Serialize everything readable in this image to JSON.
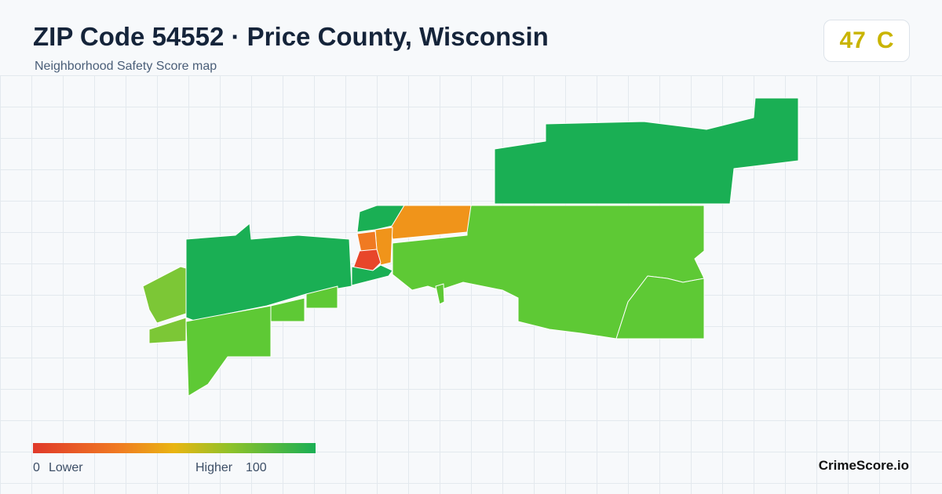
{
  "header": {
    "title": "ZIP Code 54552 · Price County, Wisconsin",
    "subtitle": "Neighborhood Safety Score map"
  },
  "score": {
    "value": 47,
    "grade": "C"
  },
  "legend": {
    "min": "0",
    "min_label": "Lower",
    "max_label": "Higher",
    "max": "100"
  },
  "brand": "CrimeScore.io"
}
